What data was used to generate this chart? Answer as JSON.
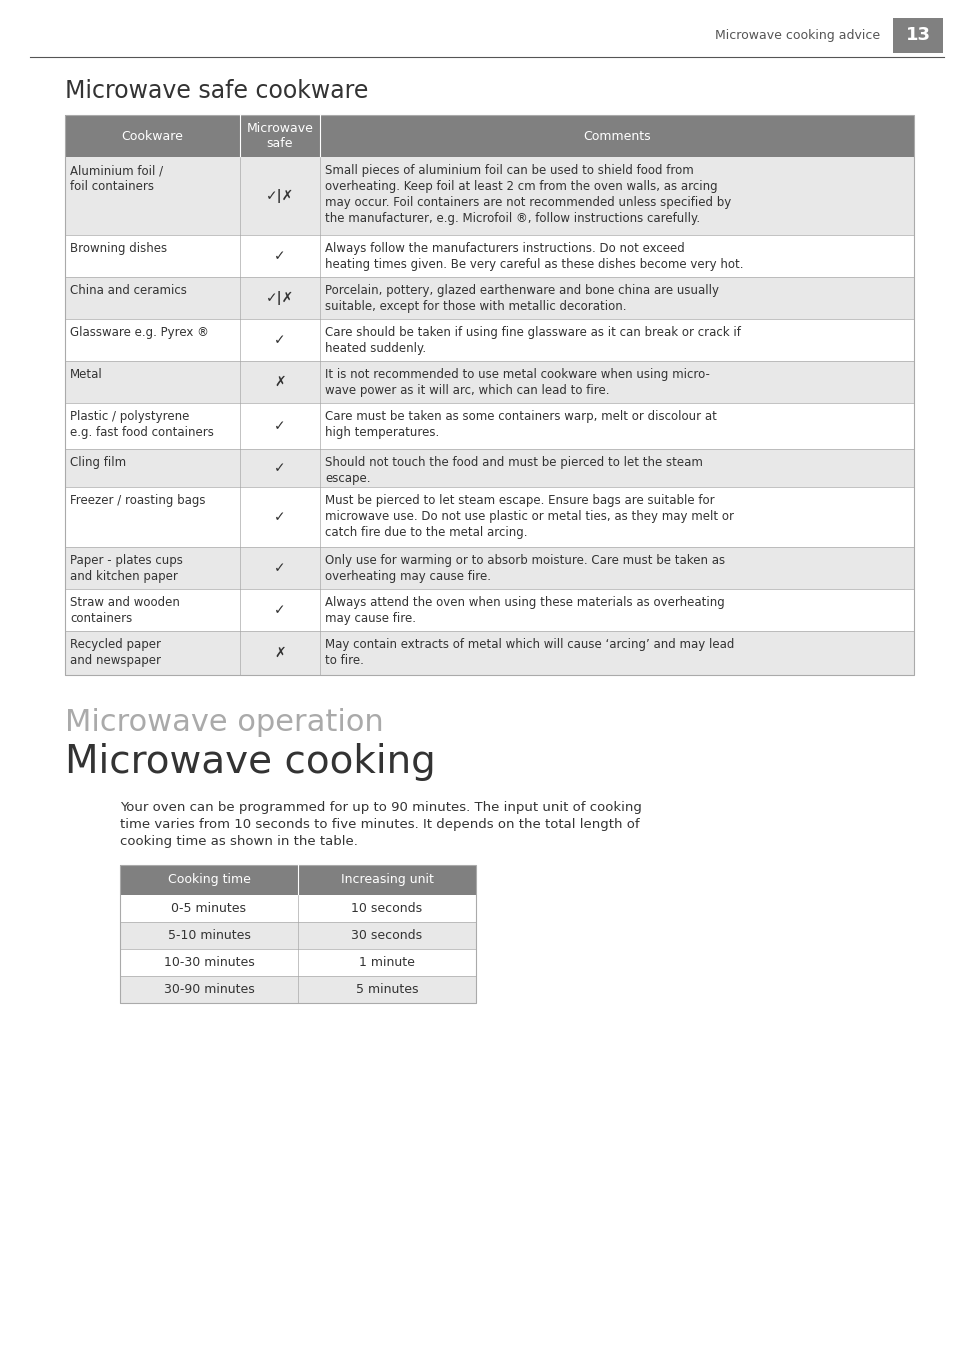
{
  "page_title": "Microwave cooking advice",
  "page_number": "13",
  "section1_title": "Microwave safe cookware",
  "table1_headers": [
    "Cookware",
    "Microwave\nsafe",
    "Comments"
  ],
  "table1_rows": [
    {
      "cookware": "Aluminium foil /\nfoil containers",
      "safe": "✓|✗",
      "comment": "Small pieces of aluminium foil can be used to shield food from\noverheating. Keep foil at least 2 cm from the oven walls, as arcing\nmay occur. Foil containers are not recommended unless specified by\nthe manufacturer, e.g. Microfoil ®, follow instructions carefully.",
      "shade": true
    },
    {
      "cookware": "Browning dishes",
      "safe": "✓",
      "comment": "Always follow the manufacturers instructions. Do not exceed\nheating times given. Be very careful as these dishes become very hot.",
      "shade": false
    },
    {
      "cookware": "China and ceramics",
      "safe": "✓|✗",
      "comment": "Porcelain, pottery, glazed earthenware and bone china are usually\nsuitable, except for those with metallic decoration.",
      "shade": true
    },
    {
      "cookware": "Glassware e.g. Pyrex ®",
      "safe": "✓",
      "comment": "Care should be taken if using fine glassware as it can break or crack if\nheated suddenly.",
      "shade": false
    },
    {
      "cookware": "Metal",
      "safe": "✗",
      "comment": "It is not recommended to use metal cookware when using micro-\nwave power as it will arc, which can lead to fire.",
      "shade": true
    },
    {
      "cookware": "Plastic / polystyrene\ne.g. fast food containers",
      "safe": "✓",
      "comment": "Care must be taken as some containers warp, melt or discolour at\nhigh temperatures.",
      "shade": false
    },
    {
      "cookware": "Cling film",
      "safe": "✓",
      "comment": "Should not touch the food and must be pierced to let the steam\nescape.",
      "shade": true
    },
    {
      "cookware": "Freezer / roasting bags",
      "safe": "✓",
      "comment": "Must be pierced to let steam escape. Ensure bags are suitable for\nmicrowave use. Do not use plastic or metal ties, as they may melt or\ncatch fire due to the metal arcing.",
      "shade": false
    },
    {
      "cookware": "Paper - plates cups\nand kitchen paper",
      "safe": "✓",
      "comment": "Only use for warming or to absorb moisture. Care must be taken as\noverheating may cause fire.",
      "shade": true
    },
    {
      "cookware": "Straw and wooden\ncontainers",
      "safe": "✓",
      "comment": "Always attend the oven when using these materials as overheating\nmay cause fire.",
      "shade": false
    },
    {
      "cookware": "Recycled paper\nand newspaper",
      "safe": "✗",
      "comment": "May contain extracts of metal which will cause ‘arcing’ and may lead\nto fire.",
      "shade": true
    }
  ],
  "section2_title": "Microwave operation",
  "section3_title": "Microwave cooking",
  "paragraph": "Your oven can be programmed for up to 90 minutes. The input unit of cooking\ntime varies from 10 seconds to five minutes. It depends on the total length of\ncooking time as shown in the table.",
  "table2_headers": [
    "Cooking time",
    "Increasing unit"
  ],
  "table2_rows": [
    {
      "time": "0-5 minutes",
      "unit": "10 seconds",
      "shade": false
    },
    {
      "time": "5-10 minutes",
      "unit": "30 seconds",
      "shade": true
    },
    {
      "time": "10-30 minutes",
      "unit": "1 minute",
      "shade": false
    },
    {
      "time": "30-90 minutes",
      "unit": "5 minutes",
      "shade": true
    }
  ],
  "header_bg": "#808080",
  "header_fg": "#ffffff",
  "shade_bg": "#e8e8e8",
  "white_bg": "#ffffff",
  "table_border": "#aaaaaa",
  "background": "#ffffff",
  "text_color": "#333333"
}
